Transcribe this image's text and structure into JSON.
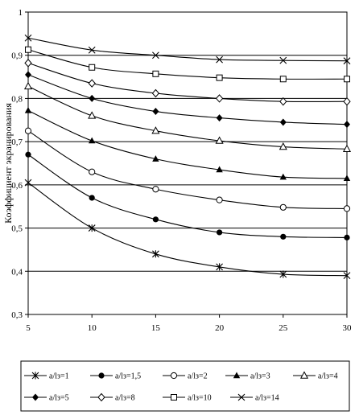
{
  "chart_data": {
    "type": "line",
    "title": "",
    "xlabel": "",
    "ylabel": "Коэффициент экранирования",
    "x": [
      5,
      10,
      15,
      20,
      25,
      30
    ],
    "x_tick_labels": [
      "5",
      "10",
      "15",
      "20",
      "25",
      "30"
    ],
    "xlim": [
      5,
      30
    ],
    "ylim": [
      0.3,
      1.0
    ],
    "y_ticks": [
      0.3,
      0.4,
      0.5,
      0.6,
      0.7,
      0.8,
      0.9,
      1.0
    ],
    "y_tick_labels": [
      "0,3",
      "0,4",
      "0,5",
      "0,6",
      "0,7",
      "0,8",
      "0,9",
      "1"
    ],
    "grid": "horizontal",
    "legend_position": "bottom",
    "series": [
      {
        "name": "a/lз=1",
        "marker": "star-cross",
        "values": [
          0.605,
          0.5,
          0.44,
          0.41,
          0.393,
          0.39
        ]
      },
      {
        "name": "a/lз=1,5",
        "marker": "filled-circle",
        "values": [
          0.67,
          0.57,
          0.52,
          0.49,
          0.48,
          0.478
        ]
      },
      {
        "name": "a/lз=2",
        "marker": "open-circle",
        "values": [
          0.725,
          0.63,
          0.59,
          0.565,
          0.548,
          0.545
        ]
      },
      {
        "name": "a/lз=3",
        "marker": "filled-triangle",
        "values": [
          0.772,
          0.702,
          0.66,
          0.635,
          0.618,
          0.615
        ]
      },
      {
        "name": "a/lз=4",
        "marker": "open-triangle",
        "values": [
          0.828,
          0.76,
          0.725,
          0.702,
          0.688,
          0.683
        ]
      },
      {
        "name": "a/lз=5",
        "marker": "filled-diamond",
        "values": [
          0.855,
          0.8,
          0.77,
          0.755,
          0.745,
          0.74
        ]
      },
      {
        "name": "a/lз=8",
        "marker": "open-diamond",
        "values": [
          0.882,
          0.835,
          0.812,
          0.8,
          0.793,
          0.793
        ]
      },
      {
        "name": "a/lз=10",
        "marker": "open-square",
        "values": [
          0.913,
          0.872,
          0.857,
          0.848,
          0.845,
          0.845
        ]
      },
      {
        "name": "a/lз=14",
        "marker": "cross",
        "values": [
          0.94,
          0.912,
          0.9,
          0.89,
          0.888,
          0.887
        ]
      }
    ]
  }
}
